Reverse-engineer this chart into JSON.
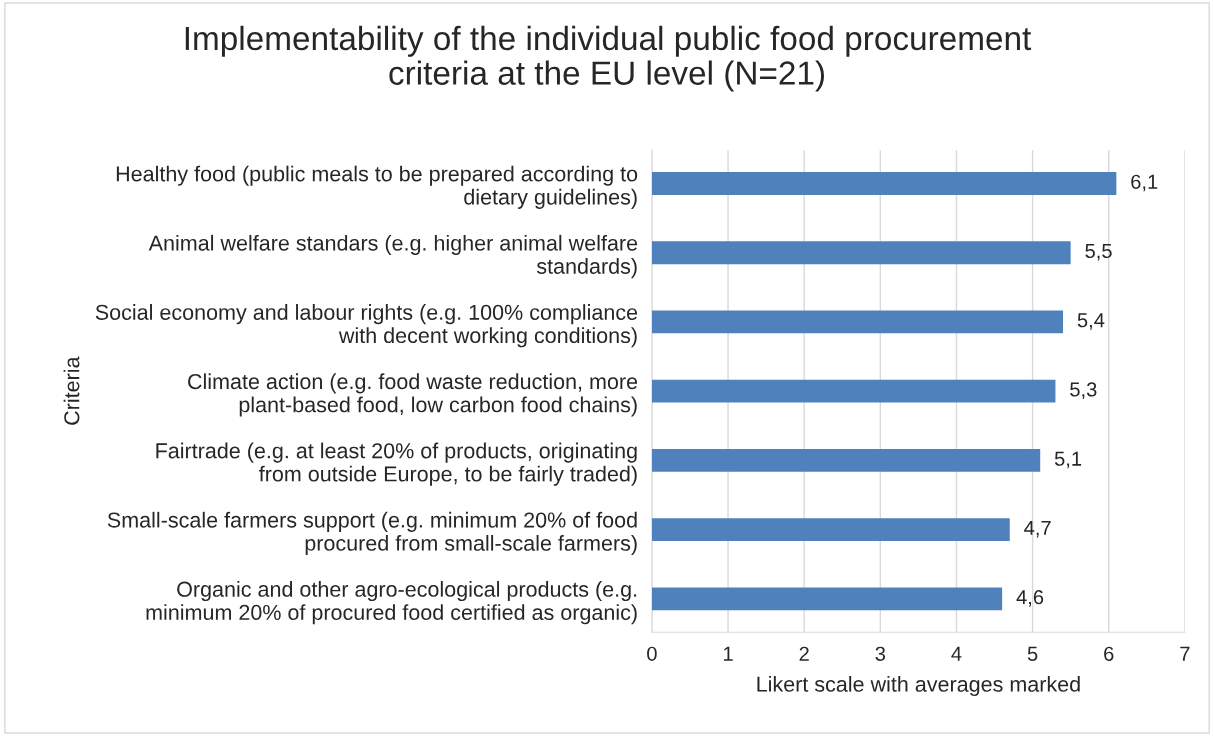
{
  "chart_data": {
    "type": "bar",
    "orientation": "horizontal",
    "title": "Implementability of the individual public food procurement criteria at the EU level (N=21)",
    "xlabel": "Likert scale with averages marked",
    "ylabel": "Criteria",
    "categories": [
      "Healthy food (public meals to be prepared according to dietary guidelines)",
      "Animal welfare standars (e.g. higher animal welfare standards)",
      "Social economy and labour rights (e.g. 100% compliance with decent working conditions)",
      "Climate action (e.g. food waste reduction, more plant-based food, low carbon food chains)",
      "Fairtrade (e.g. at least 20% of products, originating from outside Europe, to be fairly traded)",
      "Small-scale farmers support (e.g. minimum 20% of food procured from small-scale farmers)",
      "Organic and other agro-ecological products (e.g. minimum 20% of procured food certified as organic)"
    ],
    "values": [
      6.1,
      5.5,
      5.4,
      5.3,
      5.1,
      4.7,
      4.6
    ],
    "value_labels": [
      "6,1",
      "5,5",
      "5,4",
      "5,3",
      "5,1",
      "4,7",
      "4,6"
    ],
    "color": "#4f81bd",
    "xlim": [
      0,
      7
    ],
    "xticks": [
      0,
      1,
      2,
      3,
      4,
      5,
      6,
      7
    ],
    "grid": "x"
  }
}
